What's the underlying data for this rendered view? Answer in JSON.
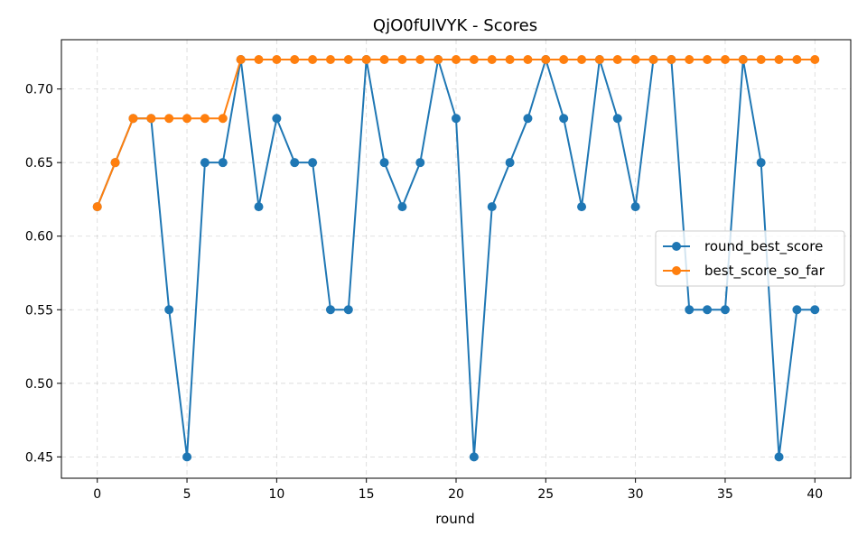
{
  "chart_data": {
    "type": "line",
    "title": "QjO0fUlVYK - Scores",
    "xlabel": "round",
    "ylabel": "",
    "xlim": [
      -2,
      42
    ],
    "ylim": [
      0.4355,
      0.7335
    ],
    "x_ticks": [
      0,
      5,
      10,
      15,
      20,
      25,
      30,
      35,
      40
    ],
    "y_ticks": [
      0.45,
      0.5,
      0.55,
      0.6,
      0.65,
      0.7
    ],
    "grid": true,
    "legend_position": "center-right",
    "x": [
      0,
      1,
      2,
      3,
      4,
      5,
      6,
      7,
      8,
      9,
      10,
      11,
      12,
      13,
      14,
      15,
      16,
      17,
      18,
      19,
      20,
      21,
      22,
      23,
      24,
      25,
      26,
      27,
      28,
      29,
      30,
      31,
      32,
      33,
      34,
      35,
      36,
      37,
      38,
      39,
      40
    ],
    "series": [
      {
        "name": "round_best_score",
        "color": "#1f77b4",
        "values": [
          0.62,
          0.65,
          0.68,
          0.68,
          0.55,
          0.45,
          0.65,
          0.65,
          0.72,
          0.62,
          0.68,
          0.65,
          0.65,
          0.55,
          0.55,
          0.72,
          0.65,
          0.62,
          0.65,
          0.72,
          0.68,
          0.45,
          0.62,
          0.65,
          0.68,
          0.72,
          0.68,
          0.62,
          0.72,
          0.68,
          0.62,
          0.72,
          0.72,
          0.55,
          0.55,
          0.55,
          0.72,
          0.65,
          0.45,
          0.55,
          0.55
        ]
      },
      {
        "name": "best_score_so_far",
        "color": "#ff7f0e",
        "values": [
          0.62,
          0.65,
          0.68,
          0.68,
          0.68,
          0.68,
          0.68,
          0.68,
          0.72,
          0.72,
          0.72,
          0.72,
          0.72,
          0.72,
          0.72,
          0.72,
          0.72,
          0.72,
          0.72,
          0.72,
          0.72,
          0.72,
          0.72,
          0.72,
          0.72,
          0.72,
          0.72,
          0.72,
          0.72,
          0.72,
          0.72,
          0.72,
          0.72,
          0.72,
          0.72,
          0.72,
          0.72,
          0.72,
          0.72,
          0.72,
          0.72
        ]
      }
    ]
  }
}
